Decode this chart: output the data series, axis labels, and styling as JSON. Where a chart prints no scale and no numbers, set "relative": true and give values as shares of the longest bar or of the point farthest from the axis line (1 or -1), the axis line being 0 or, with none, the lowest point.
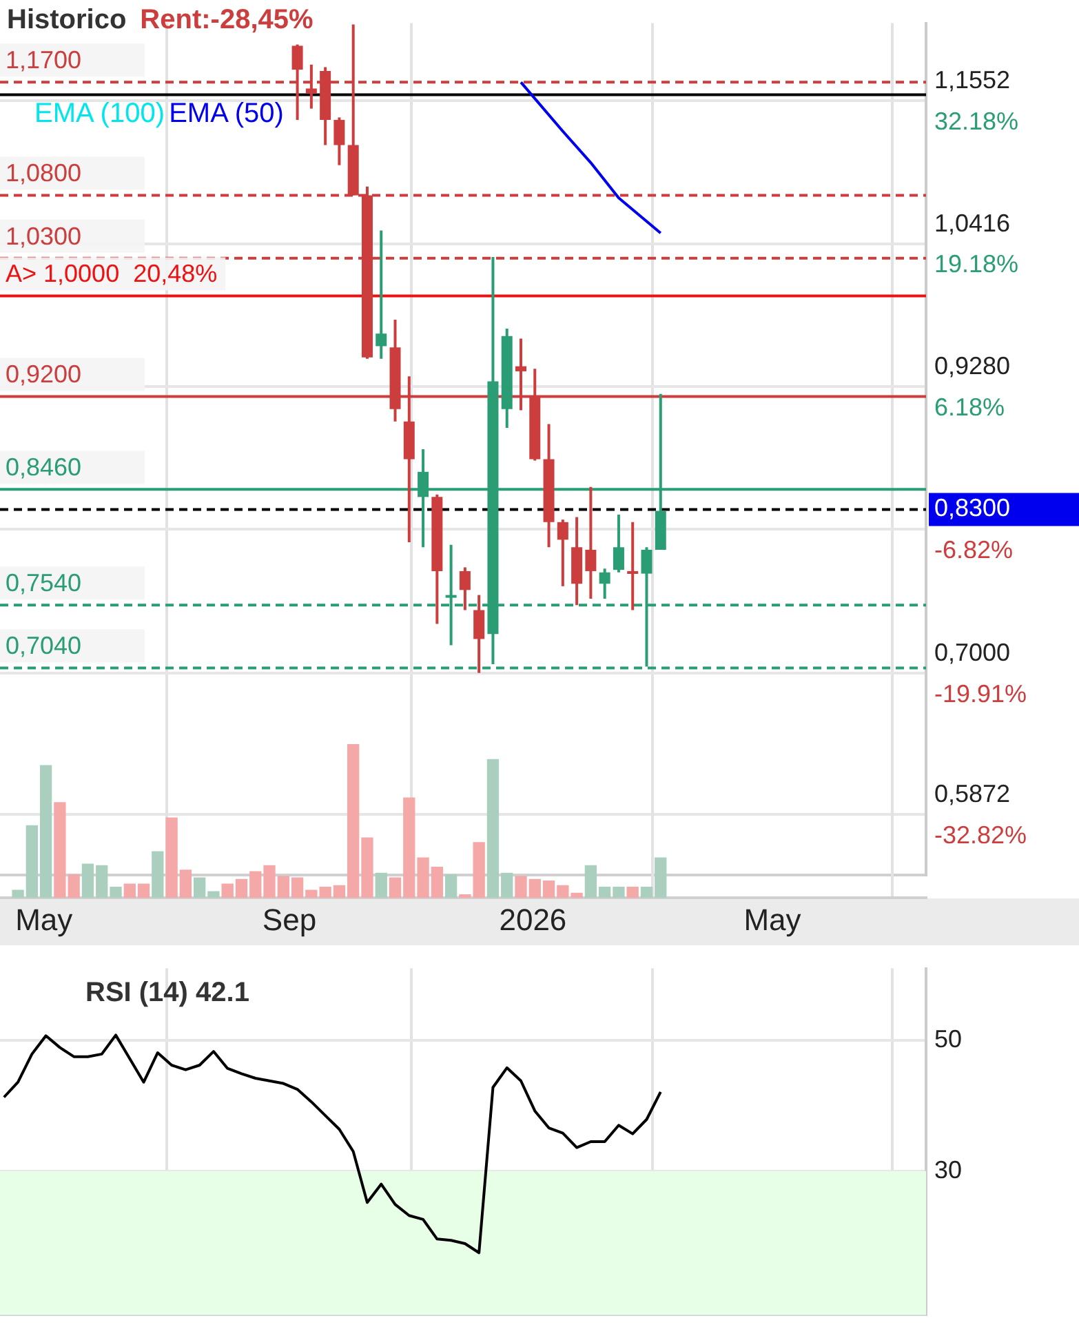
{
  "chart_data": [
    {
      "type": "candlestick",
      "title": "Historico",
      "subtitle": "Rent:-28,45%",
      "x": [
        "2025-09-05",
        "2025-09-12",
        "2025-09-19",
        "2025-09-26",
        "2025-10-03",
        "2025-10-10",
        "2025-10-17",
        "2025-10-24",
        "2025-10-31",
        "2025-11-07",
        "2025-11-14",
        "2025-11-21",
        "2025-11-28",
        "2025-12-05",
        "2025-12-12",
        "2025-12-19",
        "2025-12-26",
        "2026-01-02",
        "2026-01-09",
        "2026-01-16",
        "2026-01-23",
        "2026-01-30",
        "2026-02-06",
        "2026-02-13",
        "2026-02-20",
        "2026-02-27",
        "2026-03-06"
      ],
      "ohlc": [
        [
          1.199,
          1.2,
          1.14,
          1.18
        ],
        [
          1.165,
          1.184,
          1.149,
          1.161
        ],
        [
          1.179,
          1.182,
          1.12,
          1.14
        ],
        [
          1.14,
          1.142,
          1.104,
          1.12
        ],
        [
          1.12,
          1.216,
          1.08,
          1.08
        ],
        [
          1.08,
          1.087,
          0.95,
          0.951
        ],
        [
          0.96,
          1.052,
          0.95,
          0.97
        ],
        [
          0.959,
          0.981,
          0.9,
          0.91
        ],
        [
          0.9,
          0.936,
          0.804,
          0.87
        ],
        [
          0.84,
          0.878,
          0.8,
          0.86
        ],
        [
          0.84,
          0.842,
          0.739,
          0.781
        ],
        [
          0.76,
          0.802,
          0.722,
          0.762
        ],
        [
          0.781,
          0.784,
          0.75,
          0.766
        ],
        [
          0.75,
          0.762,
          0.7,
          0.727
        ],
        [
          0.731,
          1.031,
          0.707,
          0.932
        ],
        [
          0.91,
          0.974,
          0.895,
          0.968
        ],
        [
          0.944,
          0.966,
          0.909,
          0.94
        ],
        [
          0.92,
          0.942,
          0.869,
          0.87
        ],
        [
          0.87,
          0.898,
          0.8,
          0.82
        ],
        [
          0.82,
          0.822,
          0.769,
          0.806
        ],
        [
          0.8,
          0.824,
          0.754,
          0.771
        ],
        [
          0.798,
          0.848,
          0.759,
          0.781
        ],
        [
          0.771,
          0.783,
          0.759,
          0.78
        ],
        [
          0.782,
          0.826,
          0.78,
          0.8
        ],
        [
          0.781,
          0.82,
          0.75,
          0.779
        ],
        [
          0.779,
          0.8,
          0.705,
          0.798
        ],
        [
          0.798,
          0.922,
          0.798,
          0.829
        ]
      ],
      "colors": [
        "#cc3d3d",
        "#cc3d3d",
        "#cc3d3d",
        "#cc3d3d",
        "#cc3d3d",
        "#cc3d3d",
        "#2a9d74",
        "#cc3d3d",
        "#cc3d3d",
        "#2a9d74",
        "#cc3d3d",
        "#2a9d74",
        "#cc3d3d",
        "#cc3d3d",
        "#2a9d74",
        "#2a9d74",
        "#cc3d3d",
        "#cc3d3d",
        "#cc3d3d",
        "#cc3d3d",
        "#cc3d3d",
        "#cc3d3d",
        "#2a9d74",
        "#2a9d74",
        "#cc3d3d",
        "#2a9d74",
        "#2a9d74"
      ],
      "series": [
        {
          "name": "EMA (100)",
          "type": "line",
          "color": "#00e5ee",
          "values": [
            null,
            null,
            null,
            null,
            null,
            null,
            null,
            null,
            null,
            null,
            null,
            null,
            null,
            null,
            null,
            null,
            null,
            null,
            null,
            null,
            null,
            null,
            null,
            null,
            null,
            null,
            null
          ]
        },
        {
          "name": "EMA (50)",
          "type": "line",
          "color": "#0000ee",
          "x": [
            "2025-12-26",
            "2026-01-16",
            "2026-01-30",
            "2026-02-13",
            "2026-03-06"
          ],
          "values": [
            1.17,
            1.131,
            1.106,
            1.078,
            1.05
          ]
        }
      ],
      "marker": "none",
      "xlim": [
        "2025-04-09",
        "2026-07-17"
      ],
      "xticks": [
        {
          "value": "2025-05-01",
          "label": null
        },
        {
          "value": "2025-09-01",
          "label": null
        },
        {
          "value": "2026-01-01",
          "label": null
        },
        {
          "value": "2026-05-01",
          "label": null
        }
      ],
      "ylim": [
        0.539,
        1.217
      ],
      "yticks": [
        {
          "value": 1.1552,
          "label": "1,1552"
        },
        {
          "value": 1.0416,
          "label": "1,0416"
        },
        {
          "value": 0.928,
          "label": "0,9280"
        },
        {
          "value": 0.8144,
          "label": null
        },
        {
          "value": 0.7,
          "label": "0,7000"
        },
        {
          "value": 0.5872,
          "label": "0,5872"
        }
      ],
      "y2lim": [
        -38.33,
        39.24
      ],
      "y2ticks": [
        {
          "value": 32.18,
          "label": "32.18%"
        },
        {
          "value": 19.18,
          "label": "19.18%"
        },
        {
          "value": 6.18,
          "label": "6.18%"
        },
        {
          "value": -6.82,
          "label": "-6.82%"
        },
        {
          "value": -19.91,
          "label": "-19.91%"
        },
        {
          "value": -32.82,
          "label": "-32.82%"
        }
      ],
      "ref_lines": [
        {
          "axis": "y",
          "value": 1.17,
          "label": "1,1700",
          "color": "#cc3d3d",
          "line_style": "dashed"
        },
        {
          "axis": "y",
          "value": 1.16,
          "color": "#000000",
          "line_style": "solid"
        },
        {
          "axis": "y",
          "value": 1.08,
          "label": "1,0800",
          "color": "#cc3d3d",
          "line_style": "dashed"
        },
        {
          "axis": "y",
          "value": 1.03,
          "label": "1,0300",
          "color": "#cc3d3d",
          "line_style": "dashed"
        },
        {
          "axis": "y",
          "value": 1.0,
          "label": "A> 1,0000  20,48%",
          "color": "#ee1111",
          "line_style": "solid"
        },
        {
          "axis": "y",
          "value": 0.92,
          "label": "0,9200",
          "color": "#cc3d3d",
          "line_style": "solid"
        },
        {
          "axis": "y",
          "value": 0.846,
          "label": "0,8460",
          "color": "#2a9d74",
          "line_style": "solid"
        },
        {
          "axis": "y",
          "value": 0.83,
          "label": "0,8300",
          "color": "#000000",
          "line_style": "dashed"
        },
        {
          "axis": "y",
          "value": 0.754,
          "label": "0,7540",
          "color": "#2a9d74",
          "line_style": "dashed"
        },
        {
          "axis": "y",
          "value": 0.704,
          "label": "0,7040",
          "color": "#2a9d74",
          "line_style": "dashed"
        }
      ],
      "grid": true,
      "legend": "top left",
      "tick_labels": "y"
    },
    {
      "type": "bar",
      "relative": true,
      "x": [
        "2025-04-18",
        "2025-04-25",
        "2025-05-02",
        "2025-05-09",
        "2025-05-16",
        "2025-05-23",
        "2025-05-30",
        "2025-06-06",
        "2025-06-13",
        "2025-06-20",
        "2025-06-27",
        "2025-07-04",
        "2025-07-11",
        "2025-07-18",
        "2025-07-25",
        "2025-08-01",
        "2025-08-08",
        "2025-08-15",
        "2025-08-22",
        "2025-08-29",
        "2025-09-05",
        "2025-09-12",
        "2025-09-19",
        "2025-09-26",
        "2025-10-03",
        "2025-10-10",
        "2025-10-17",
        "2025-10-24",
        "2025-10-31",
        "2025-11-07",
        "2025-11-14",
        "2025-11-21",
        "2025-11-28",
        "2025-12-05",
        "2025-12-12",
        "2025-12-19",
        "2025-12-26",
        "2026-01-02",
        "2026-01-09",
        "2026-01-16",
        "2026-01-23",
        "2026-01-30",
        "2026-02-06",
        "2026-02-13",
        "2026-02-20",
        "2026-02-27",
        "2026-03-06"
      ],
      "values": [
        0.05,
        0.47,
        0.86,
        0.62,
        0.15,
        0.22,
        0.21,
        0.07,
        0.09,
        0.09,
        0.3,
        0.52,
        0.18,
        0.13,
        0.04,
        0.09,
        0.12,
        0.17,
        0.21,
        0.14,
        0.13,
        0.05,
        0.07,
        0.08,
        1,
        0.39,
        0.16,
        0.13,
        0.65,
        0.26,
        0.2,
        0.15,
        0.02,
        0.36,
        0.9,
        0.16,
        0.14,
        0.12,
        0.11,
        0.08,
        0.03,
        0.21,
        0.07,
        0.07,
        0.07,
        0.07,
        0.26
      ],
      "colors": [
        "#aacfbf",
        "#aacfbf",
        "#aacfbf",
        "#f4a8a8",
        "#f4a8a8",
        "#aacfbf",
        "#aacfbf",
        "#aacfbf",
        "#f4a8a8",
        "#f4a8a8",
        "#aacfbf",
        "#f4a8a8",
        "#f4a8a8",
        "#aacfbf",
        "#aacfbf",
        "#f4a8a8",
        "#f4a8a8",
        "#f4a8a8",
        "#f4a8a8",
        "#f4a8a8",
        "#f4a8a8",
        "#f4a8a8",
        "#f4a8a8",
        "#f4a8a8",
        "#f4a8a8",
        "#f4a8a8",
        "#aacfbf",
        "#f4a8a8",
        "#f4a8a8",
        "#f4a8a8",
        "#f4a8a8",
        "#aacfbf",
        "#f4a8a8",
        "#f4a8a8",
        "#aacfbf",
        "#aacfbf",
        "#f4a8a8",
        "#f4a8a8",
        "#f4a8a8",
        "#f4a8a8",
        "#f4a8a8",
        "#aacfbf",
        "#aacfbf",
        "#aacfbf",
        "#f4a8a8",
        "#aacfbf",
        "#aacfbf"
      ],
      "xlim": [
        "2025-04-09",
        "2026-07-17"
      ],
      "xticks": [
        {
          "value": "2025-05-01",
          "label": "May"
        },
        {
          "value": "2025-09-01",
          "label": "Sep"
        },
        {
          "value": "2026-01-01",
          "label": "2026"
        },
        {
          "value": "2026-05-01",
          "label": "May"
        }
      ],
      "grid": "x",
      "tick_labels": "x"
    },
    {
      "type": "line",
      "title": "RSI (14) 42.1",
      "color": "#000000",
      "marker": "none",
      "x": [
        "2025-04-11",
        "2025-04-18",
        "2025-04-25",
        "2025-05-02",
        "2025-05-09",
        "2025-05-16",
        "2025-05-23",
        "2025-05-30",
        "2025-06-06",
        "2025-06-13",
        "2025-06-20",
        "2025-06-27",
        "2025-07-04",
        "2025-07-11",
        "2025-07-18",
        "2025-07-25",
        "2025-08-01",
        "2025-08-08",
        "2025-08-15",
        "2025-08-22",
        "2025-08-29",
        "2025-09-05",
        "2025-09-12",
        "2025-09-19",
        "2025-09-26",
        "2025-10-03",
        "2025-10-10",
        "2025-10-17",
        "2025-10-24",
        "2025-10-31",
        "2025-11-07",
        "2025-11-14",
        "2025-11-21",
        "2025-11-28",
        "2025-12-05",
        "2025-12-12",
        "2025-12-19",
        "2025-12-26",
        "2026-01-02",
        "2026-01-09",
        "2026-01-16",
        "2026-01-23",
        "2026-01-30",
        "2026-02-06",
        "2026-02-13",
        "2026-02-20",
        "2026-02-27",
        "2026-03-06"
      ],
      "values": [
        41.3,
        43.6,
        47.9,
        50.7,
        48.9,
        47.5,
        47.5,
        47.9,
        50.8,
        47.2,
        43.6,
        48.1,
        46.2,
        45.5,
        46.2,
        48.3,
        45.7,
        44.9,
        44.2,
        43.8,
        43.4,
        42.5,
        40.6,
        38.5,
        36.4,
        33.0,
        25.2,
        28.0,
        24.9,
        23.2,
        22.6,
        19.6,
        19.4,
        18.9,
        17.5,
        42.8,
        45.8,
        43.8,
        39.2,
        36.6,
        35.8,
        33.6,
        34.5,
        34.5,
        37.0,
        35.7,
        37.9,
        42.1
      ],
      "xlim": [
        "2025-04-09",
        "2026-07-17"
      ],
      "xticks": [
        {
          "value": "2025-05-01",
          "label": null
        },
        {
          "value": "2025-09-01",
          "label": null
        },
        {
          "value": "2026-01-01",
          "label": null
        },
        {
          "value": "2026-05-01",
          "label": null
        }
      ],
      "ylim": [
        8,
        61
      ],
      "yticks": [
        50,
        30
      ],
      "bands": [
        {
          "axis": "y",
          "from": 8,
          "to": 30,
          "color": "#e6ffe6"
        }
      ],
      "grid": true,
      "tick_labels": "y"
    }
  ]
}
